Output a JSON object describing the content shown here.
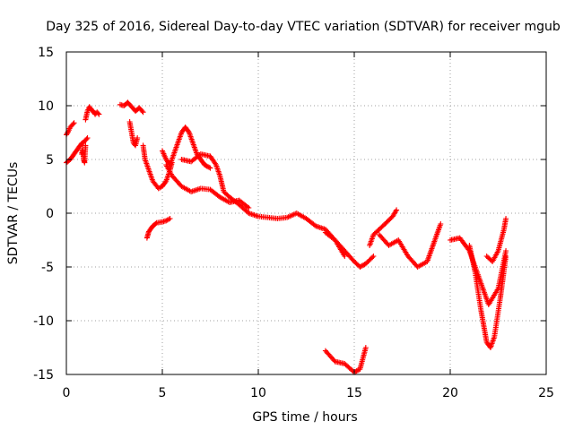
{
  "chart_data": {
    "type": "scatter",
    "title": "Day 325 of 2016, Sidereal Day-to-day VTEC variation (SDTVAR) for receiver mgub",
    "xlabel": "GPS time / hours",
    "ylabel": "SDTVAR / TECUs",
    "xlim": [
      0,
      25
    ],
    "ylim": [
      -15,
      15
    ],
    "xticks": [
      "0",
      "5",
      "10",
      "15",
      "20",
      "25"
    ],
    "yticks": [
      "-15",
      "-10",
      "-5",
      "0",
      "5",
      "10",
      "15"
    ],
    "grid": true,
    "marker": "plus",
    "color": "#ff0000",
    "series": [
      {
        "x": [
          0.0,
          0.1,
          0.2,
          0.3,
          0.4
        ],
        "y": [
          7.3,
          7.6,
          8.0,
          8.2,
          8.4
        ]
      },
      {
        "x": [
          0.0,
          0.2,
          0.4,
          0.6,
          0.8,
          0.9,
          1.0,
          1.1
        ],
        "y": [
          4.7,
          5.0,
          5.5,
          6.0,
          6.5,
          6.6,
          6.8,
          7.0
        ]
      },
      {
        "x": [
          0.8,
          0.85,
          0.9,
          0.95,
          1.0
        ],
        "y": [
          5.5,
          6.0,
          5.0,
          4.7,
          6.3
        ]
      },
      {
        "x": [
          1.0,
          1.1,
          1.2,
          1.3,
          1.4,
          1.5,
          1.6,
          1.7
        ],
        "y": [
          8.7,
          9.5,
          9.9,
          9.6,
          9.5,
          9.2,
          9.4,
          9.2
        ]
      },
      {
        "x": [
          2.8,
          3.0,
          3.2,
          3.4,
          3.6,
          3.8,
          4.0
        ],
        "y": [
          10.1,
          10.0,
          10.3,
          9.9,
          9.5,
          9.8,
          9.4
        ]
      },
      {
        "x": [
          3.3,
          3.4,
          3.5,
          3.6,
          3.7
        ],
        "y": [
          8.5,
          7.5,
          6.5,
          6.3,
          7.0
        ]
      },
      {
        "x": [
          4.0,
          4.1,
          4.3,
          4.5,
          4.8,
          5.0,
          5.2,
          5.4,
          5.5
        ],
        "y": [
          6.3,
          5.0,
          4.0,
          3.0,
          2.3,
          2.5,
          3.0,
          4.0,
          4.7
        ]
      },
      {
        "x": [
          4.2,
          4.3,
          4.5,
          4.7,
          5.0,
          5.2,
          5.4
        ],
        "y": [
          -2.3,
          -1.7,
          -1.2,
          -0.9,
          -0.8,
          -0.7,
          -0.5
        ]
      },
      {
        "x": [
          5.0,
          5.2,
          5.4,
          5.6,
          5.8,
          6.0,
          6.2,
          6.4,
          6.6,
          6.8,
          7.0,
          7.2,
          7.5
        ],
        "y": [
          5.8,
          5.0,
          4.5,
          5.5,
          6.5,
          7.5,
          8.0,
          7.5,
          6.5,
          5.5,
          5.0,
          4.5,
          4.2
        ]
      },
      {
        "x": [
          5.2,
          5.5,
          6.0,
          6.5,
          7.0,
          7.5,
          8.0,
          8.5,
          9.0,
          9.5
        ],
        "y": [
          4.5,
          3.5,
          2.5,
          2.0,
          2.3,
          2.2,
          1.5,
          1.0,
          1.2,
          0.5
        ]
      },
      {
        "x": [
          6.0,
          6.5,
          7.0,
          7.5,
          7.8,
          8.0,
          8.2,
          8.5,
          9.0,
          9.5,
          10.0,
          10.5,
          11.0,
          11.5,
          12.0,
          12.5,
          13.0,
          13.5,
          14.0,
          14.5
        ],
        "y": [
          5.0,
          4.8,
          5.5,
          5.3,
          4.5,
          3.5,
          2.0,
          1.5,
          0.8,
          0.0,
          -0.3,
          -0.4,
          -0.5,
          -0.4,
          0.0,
          -0.5,
          -1.2,
          -1.5,
          -2.5,
          -4.0
        ]
      },
      {
        "x": [
          13.5,
          14.0,
          14.5,
          15.0,
          15.3,
          15.6,
          16.0
        ],
        "y": [
          -1.8,
          -2.5,
          -3.5,
          -4.5,
          -5.0,
          -4.7,
          -4.0
        ]
      },
      {
        "x": [
          13.5,
          14.0,
          14.5,
          15.0,
          15.3,
          15.6
        ],
        "y": [
          -12.8,
          -13.8,
          -14.0,
          -14.8,
          -14.5,
          -12.5
        ]
      },
      {
        "x": [
          15.8,
          16.0,
          16.3,
          16.6,
          17.0,
          17.2
        ],
        "y": [
          -3.0,
          -2.0,
          -1.5,
          -1.0,
          -0.3,
          0.3
        ]
      },
      {
        "x": [
          16.3,
          16.8,
          17.3,
          17.8,
          18.3,
          18.8,
          19.2,
          19.5
        ],
        "y": [
          -2.0,
          -3.0,
          -2.5,
          -4.0,
          -5.0,
          -4.5,
          -2.5,
          -1.0
        ]
      },
      {
        "x": [
          20.0,
          20.5,
          21.0,
          21.5,
          22.0,
          22.5,
          22.9
        ],
        "y": [
          -2.5,
          -2.3,
          -3.5,
          -6.0,
          -8.5,
          -7.0,
          -3.5
        ]
      },
      {
        "x": [
          21.0,
          21.3,
          21.6,
          21.9,
          22.1,
          22.3,
          22.6,
          22.9
        ],
        "y": [
          -3.0,
          -5.5,
          -9.0,
          -12.0,
          -12.5,
          -11.5,
          -8.0,
          -4.0
        ]
      },
      {
        "x": [
          21.9,
          22.2,
          22.5,
          22.8,
          22.9
        ],
        "y": [
          -4.0,
          -4.5,
          -3.5,
          -1.5,
          -0.5
        ]
      }
    ]
  }
}
